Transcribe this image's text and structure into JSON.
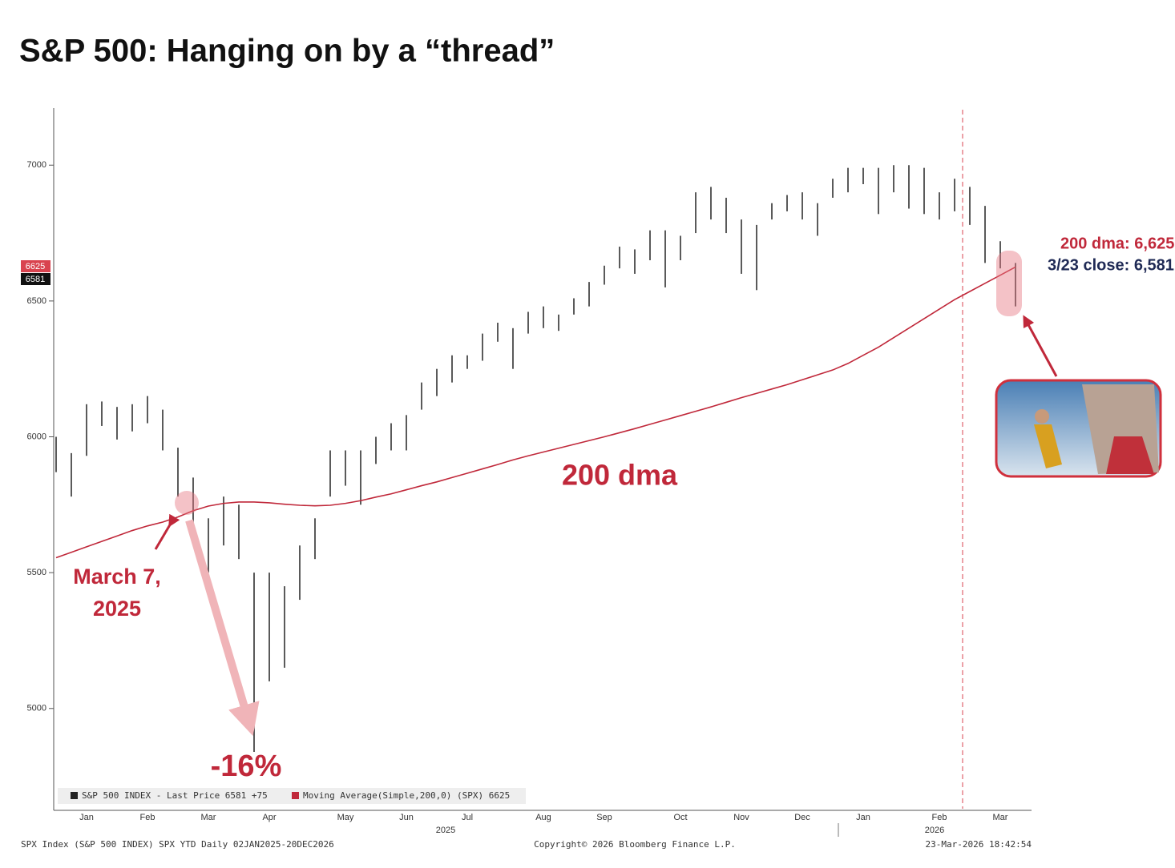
{
  "title": "S&P 500: Hanging on by a “thread”",
  "chart_data": {
    "type": "bar-range",
    "categories": [
      null,
      null,
      "Jan",
      null,
      null,
      null,
      "Feb",
      null,
      null,
      null,
      "Mar",
      null,
      null,
      null,
      "Apr",
      null,
      null,
      null,
      null,
      "May",
      null,
      null,
      null,
      "Jun",
      null,
      null,
      null,
      "Jul",
      null,
      null,
      null,
      null,
      "Aug",
      null,
      null,
      null,
      "Sep",
      null,
      null,
      null,
      null,
      "Oct",
      null,
      null,
      null,
      "Nov",
      null,
      null,
      null,
      "Dec",
      null,
      null,
      null,
      "Jan",
      null,
      null,
      null,
      null,
      "Feb",
      null,
      null,
      null,
      "Mar",
      null
    ],
    "years": [
      "2025",
      "2026"
    ],
    "series": [
      {
        "name": "S&P 500 INDEX - Last Price 6581 +75",
        "color": "#222222",
        "high": [
          6000,
          5940,
          6120,
          6130,
          6110,
          6120,
          6150,
          6100,
          5960,
          5850,
          5700,
          5780,
          5750,
          5500,
          5500,
          5450,
          5600,
          5700,
          5950,
          5950,
          5950,
          6000,
          6050,
          6080,
          6200,
          6250,
          6300,
          6300,
          6380,
          6420,
          6400,
          6460,
          6480,
          6450,
          6510,
          6570,
          6630,
          6700,
          6690,
          6760,
          6760,
          6740,
          6900,
          6920,
          6880,
          6800,
          6780,
          6860,
          6890,
          6900,
          6860,
          6950,
          6990,
          6990,
          6990,
          7000,
          7000,
          6990,
          6900,
          6950,
          6920,
          6850,
          6720,
          6640
        ],
        "low": [
          5870,
          5780,
          5930,
          6040,
          5990,
          6020,
          6050,
          5950,
          5780,
          5680,
          5500,
          5600,
          5550,
          4840,
          5100,
          5150,
          5400,
          5550,
          5780,
          5820,
          5750,
          5900,
          5950,
          5950,
          6100,
          6150,
          6200,
          6250,
          6280,
          6350,
          6250,
          6380,
          6400,
          6390,
          6450,
          6480,
          6560,
          6620,
          6600,
          6650,
          6550,
          6650,
          6750,
          6800,
          6750,
          6600,
          6540,
          6800,
          6830,
          6800,
          6740,
          6880,
          6900,
          6930,
          6820,
          6900,
          6840,
          6820,
          6800,
          6830,
          6780,
          6640,
          6620,
          6480
        ]
      },
      {
        "name": "Moving Average(Simple,200,0) (SPX) 6625",
        "color": "#c0283a",
        "values": [
          5555,
          5575,
          5595,
          5615,
          5635,
          5655,
          5672,
          5686,
          5705,
          5728,
          5745,
          5755,
          5760,
          5760,
          5757,
          5752,
          5748,
          5746,
          5748,
          5755,
          5765,
          5778,
          5790,
          5805,
          5820,
          5834,
          5850,
          5866,
          5882,
          5898,
          5915,
          5930,
          5944,
          5958,
          5972,
          5986,
          6000,
          6015,
          6030,
          6046,
          6062,
          6078,
          6094,
          6110,
          6127,
          6144,
          6160,
          6176,
          6192,
          6210,
          6228,
          6246,
          6270,
          6300,
          6330,
          6365,
          6400,
          6435,
          6470,
          6505,
          6535,
          6565,
          6595,
          6625
        ]
      }
    ],
    "ylim": [
      4625,
      7210
    ],
    "yticks": [
      5000,
      5500,
      6000,
      6500,
      7000
    ],
    "badges": [
      "6625",
      "6581"
    ],
    "annotations": {
      "march_line1": "March 7,",
      "march_line2": "2025",
      "drop": "-16%",
      "dma": "200 dma",
      "dma_value": "200 dma: 6,625",
      "close_value": "3/23 close: 6,581"
    },
    "footer": {
      "left": "SPX Index (S&P 500 INDEX) SPX YTD Daily 02JAN2025-20DEC2026",
      "center": "Copyright© 2026 Bloomberg Finance L.P.",
      "right": "23-Mar-2026 18:42:54"
    }
  }
}
